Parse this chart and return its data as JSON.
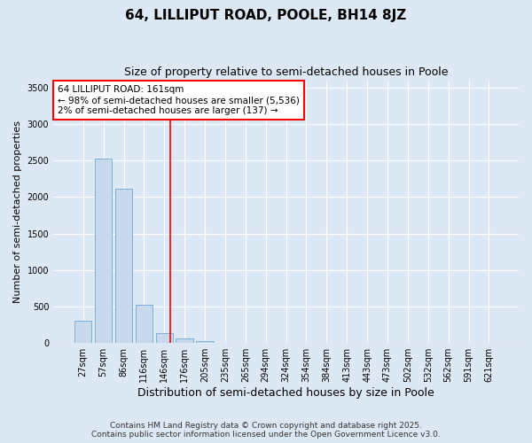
{
  "title": "64, LILLIPUT ROAD, POOLE, BH14 8JZ",
  "subtitle": "Size of property relative to semi-detached houses in Poole",
  "xlabel": "Distribution of semi-detached houses by size in Poole",
  "ylabel": "Number of semi-detached properties",
  "bins": [
    "27sqm",
    "57sqm",
    "86sqm",
    "116sqm",
    "146sqm",
    "176sqm",
    "205sqm",
    "235sqm",
    "265sqm",
    "294sqm",
    "324sqm",
    "354sqm",
    "384sqm",
    "413sqm",
    "443sqm",
    "473sqm",
    "502sqm",
    "532sqm",
    "562sqm",
    "591sqm",
    "621sqm"
  ],
  "values": [
    300,
    2530,
    2120,
    530,
    130,
    60,
    30,
    0,
    0,
    0,
    0,
    0,
    0,
    0,
    0,
    0,
    0,
    0,
    0,
    0,
    0
  ],
  "bar_color": "#c9d9ed",
  "bar_edge_color": "#7bafd4",
  "annotation_text": "64 LILLIPUT ROAD: 161sqm\n← 98% of semi-detached houses are smaller (5,536)\n2% of semi-detached houses are larger (137) →",
  "annotation_box_facecolor": "#ffffff",
  "annotation_box_edgecolor": "red",
  "property_line_bin": 4,
  "property_line_color": "red",
  "ylim": [
    0,
    3600
  ],
  "yticks": [
    0,
    500,
    1000,
    1500,
    2000,
    2500,
    3000,
    3500
  ],
  "background_color": "#dde8f5",
  "grid_color": "#ffffff",
  "footer_line1": "Contains HM Land Registry data © Crown copyright and database right 2025.",
  "footer_line2": "Contains public sector information licensed under the Open Government Licence v3.0.",
  "title_fontsize": 11,
  "subtitle_fontsize": 9,
  "tick_fontsize": 7,
  "ylabel_fontsize": 8,
  "xlabel_fontsize": 9,
  "footer_fontsize": 6.5
}
